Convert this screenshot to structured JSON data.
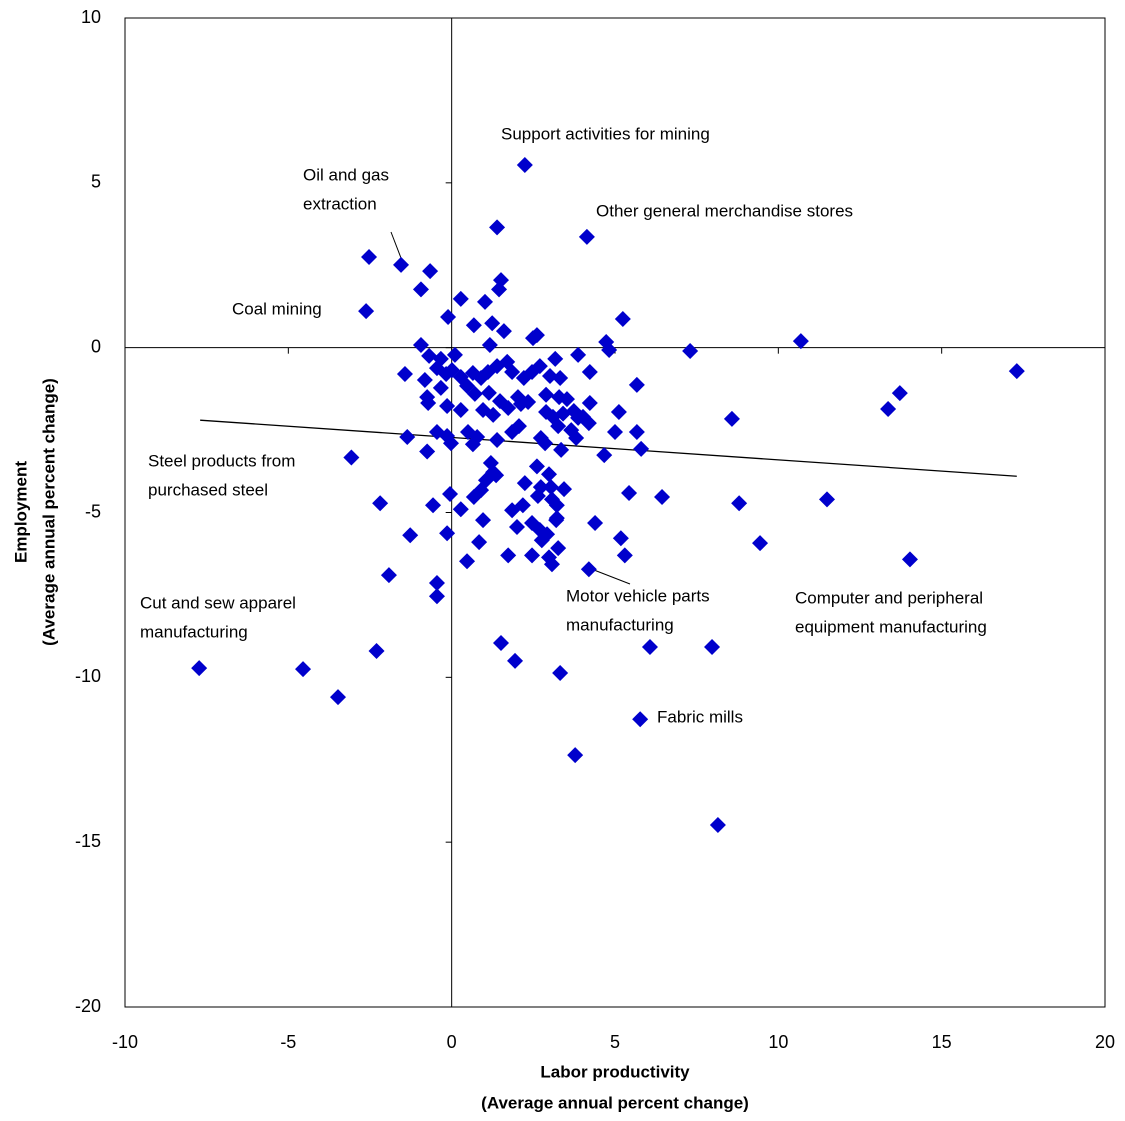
{
  "chart_data": {
    "type": "scatter",
    "x_label": [
      "Labor productivity",
      "(Average annual  percent change)"
    ],
    "y_label": [
      "Employment",
      "(Average annual  percent change)"
    ],
    "xlim": [
      -10,
      20
    ],
    "xticks": [
      -10,
      -5,
      0,
      5,
      10,
      15,
      20
    ],
    "ylim": [
      -20,
      10
    ],
    "yticks": [
      -20,
      -15,
      -10,
      -5,
      0,
      5,
      10
    ],
    "color": "#0000cc",
    "x": [
      2.24,
      4.14,
      1.39,
      -2.53,
      -1.55,
      -0.66,
      1.51,
      -0.94,
      1.45,
      -2.62,
      0.28,
      1.02,
      5.24,
      -0.11,
      0.68,
      1.24,
      1.6,
      2.61,
      2.49,
      10.69,
      7.3,
      17.3,
      4.73,
      4.82,
      3.87,
      3.17,
      -0.94,
      1.17,
      -0.69,
      -0.33,
      0.1,
      -1.43,
      -0.82,
      -0.45,
      -0.17,
      0.01,
      0.28,
      0.65,
      0.9,
      1.11,
      1.39,
      1.7,
      1.85,
      2.21,
      2.46,
      2.7,
      3.01,
      3.32,
      4.23,
      5.67,
      -0.75,
      -0.33,
      0.47,
      0.71,
      1.14,
      1.48,
      2.03,
      2.34,
      2.89,
      3.29,
      3.53,
      4.23,
      3.74,
      -0.72,
      -0.14,
      0.28,
      0.96,
      1.27,
      1.73,
      2.12,
      2.89,
      3.1,
      3.41,
      4.02,
      4.2,
      3.87,
      5.12,
      8.58,
      13.36,
      13.72,
      -0.45,
      -1.36,
      -0.14,
      0.5,
      0.78,
      1.39,
      1.85,
      2.06,
      2.73,
      3.26,
      3.66,
      3.81,
      5.0,
      5.67,
      -0.75,
      -0.02,
      0.65,
      1.2,
      2.86,
      3.35,
      5.8,
      4.67,
      -3.07,
      1.27,
      2.61,
      2.98,
      1.05,
      1.36,
      2.24,
      2.73,
      3.44,
      0.9,
      3.04,
      0.68,
      2.64,
      3.07,
      5.43,
      6.44,
      11.49,
      8.8,
      -0.05,
      -2.19,
      -0.57,
      0.28,
      1.85,
      2.18,
      3.22,
      0.96,
      3.22,
      4.39,
      -1.27,
      -0.14,
      2.0,
      2.46,
      2.7,
      2.92,
      3.2,
      5.18,
      0.84,
      2.76,
      3.26,
      9.44,
      1.73,
      2.46,
      5.3,
      2.98,
      3.07,
      0.47,
      4.2,
      14.03,
      -1.92,
      -0.45,
      -0.45,
      1.51,
      1.94,
      -2.3,
      6.07,
      7.97,
      -4.55,
      -7.73,
      -3.48,
      3.32,
      5.77,
      3.78,
      8.15
    ],
    "values": [
      5.54,
      3.36,
      3.65,
      2.75,
      2.51,
      2.32,
      2.05,
      1.77,
      1.77,
      1.11,
      1.48,
      1.39,
      0.87,
      0.93,
      0.68,
      0.74,
      0.5,
      0.38,
      0.29,
      0.2,
      -0.1,
      -0.71,
      0.17,
      -0.07,
      -0.22,
      -0.34,
      0.08,
      0.08,
      -0.25,
      -0.34,
      -0.22,
      -0.8,
      -0.98,
      -0.62,
      -0.8,
      -0.68,
      -0.89,
      -0.77,
      -0.92,
      -0.74,
      -0.56,
      -0.43,
      -0.74,
      -0.92,
      -0.74,
      -0.56,
      -0.86,
      -0.92,
      -0.74,
      -1.13,
      -1.5,
      -1.22,
      -1.16,
      -1.4,
      -1.37,
      -1.62,
      -1.5,
      -1.65,
      -1.43,
      -1.5,
      -1.56,
      -1.68,
      -1.92,
      -1.68,
      -1.77,
      -1.89,
      -1.89,
      -2.04,
      -1.83,
      -1.71,
      -1.95,
      -2.1,
      -2.0,
      -2.1,
      -2.29,
      -2.13,
      -1.95,
      -2.16,
      -1.86,
      -1.38,
      -2.56,
      -2.71,
      -2.68,
      -2.56,
      -2.71,
      -2.8,
      -2.56,
      -2.38,
      -2.74,
      -2.38,
      -2.5,
      -2.74,
      -2.56,
      -2.56,
      -3.15,
      -2.9,
      -2.93,
      -3.5,
      -2.9,
      -3.1,
      -3.07,
      -3.26,
      -3.33,
      -3.78,
      -3.6,
      -3.84,
      -4.02,
      -3.87,
      -4.11,
      -4.23,
      -4.29,
      -4.32,
      -4.23,
      -4.53,
      -4.5,
      -4.6,
      -4.41,
      -4.53,
      -4.6,
      -4.72,
      -4.44,
      -4.72,
      -4.78,
      -4.9,
      -4.93,
      -4.78,
      -4.78,
      -5.23,
      -5.17,
      -5.32,
      -5.69,
      -5.63,
      -5.44,
      -5.32,
      -5.53,
      -5.66,
      -5.23,
      -5.78,
      -5.9,
      -5.84,
      -6.08,
      -5.93,
      -6.3,
      -6.3,
      -6.3,
      -6.36,
      -6.57,
      -6.48,
      -6.72,
      -6.42,
      -6.9,
      -7.14,
      -7.54,
      -8.96,
      -9.5,
      -9.2,
      -9.08,
      -9.08,
      -9.75,
      -9.72,
      -10.6,
      -9.87,
      -11.27,
      -12.36,
      -14.48
    ],
    "trendline": {
      "x": [
        -7.7,
        17.3
      ],
      "values": [
        -2.2,
        -3.9
      ]
    },
    "annotations": [
      [
        "Support activities for mining"
      ],
      [
        "Oil and gas",
        "extraction"
      ],
      [
        "Other general merchandise stores"
      ],
      [
        "Coal mining"
      ],
      [
        "Steel products from",
        "purchased steel"
      ],
      [
        "Cut and sew apparel",
        "manufacturing"
      ],
      [
        "Motor vehicle parts",
        "manufacturing"
      ],
      [
        "Computer and peripheral",
        "equipment manufacturing"
      ],
      [
        "Fabric mills"
      ]
    ]
  }
}
